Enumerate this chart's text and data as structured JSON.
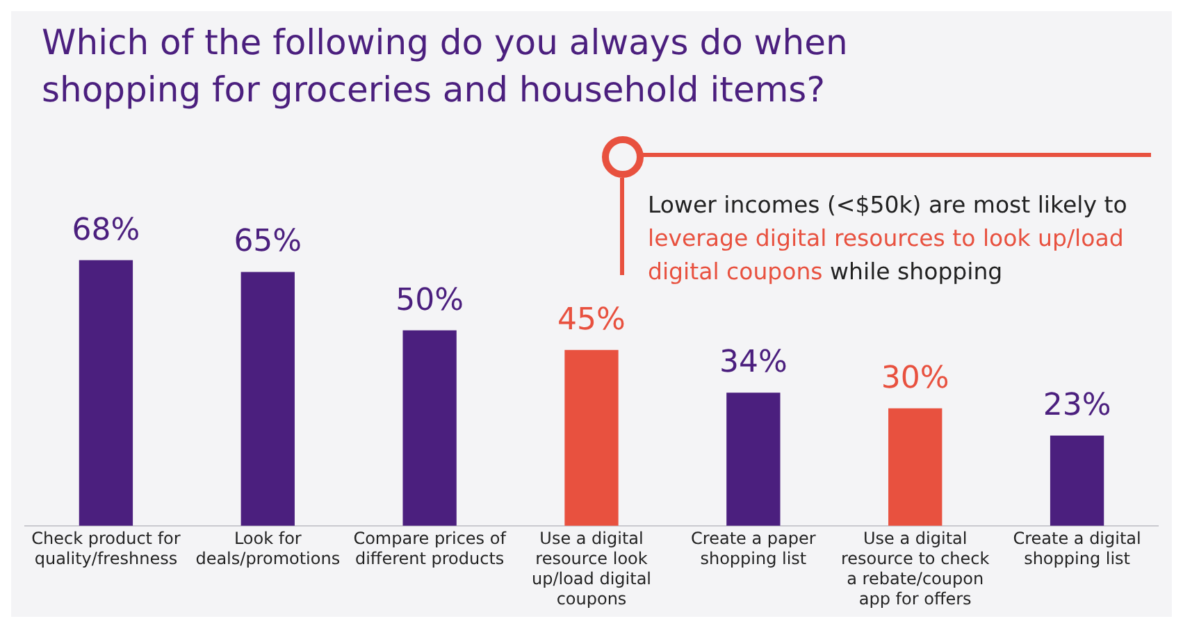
{
  "chart_data": {
    "type": "bar",
    "title": "Which of the following do you always do when shopping for groceries and household items?",
    "categories": [
      "Check product for quality/freshness",
      "Look for deals/promotions",
      "Compare prices of different products",
      "Use a digital resource look up/load digital coupons",
      "Create a paper shopping list",
      "Use a digital resource to check a rebate/coupon app for offers",
      "Create a digital shopping list"
    ],
    "values": [
      68,
      65,
      50,
      45,
      34,
      30,
      23
    ],
    "colors": [
      "#4b1f7e",
      "#4b1f7e",
      "#4b1f7e",
      "#e8513f",
      "#4b1f7e",
      "#e8513f",
      "#4b1f7e"
    ],
    "value_labels": [
      "68%",
      "65%",
      "50%",
      "45%",
      "34%",
      "30%",
      "23%"
    ],
    "annotations": [
      "Lower incomes (<$50k) are most likely to ",
      "leverage digital resources to look up/load digital coupons",
      " while shopping"
    ],
    "grid": false,
    "legend": false
  }
}
